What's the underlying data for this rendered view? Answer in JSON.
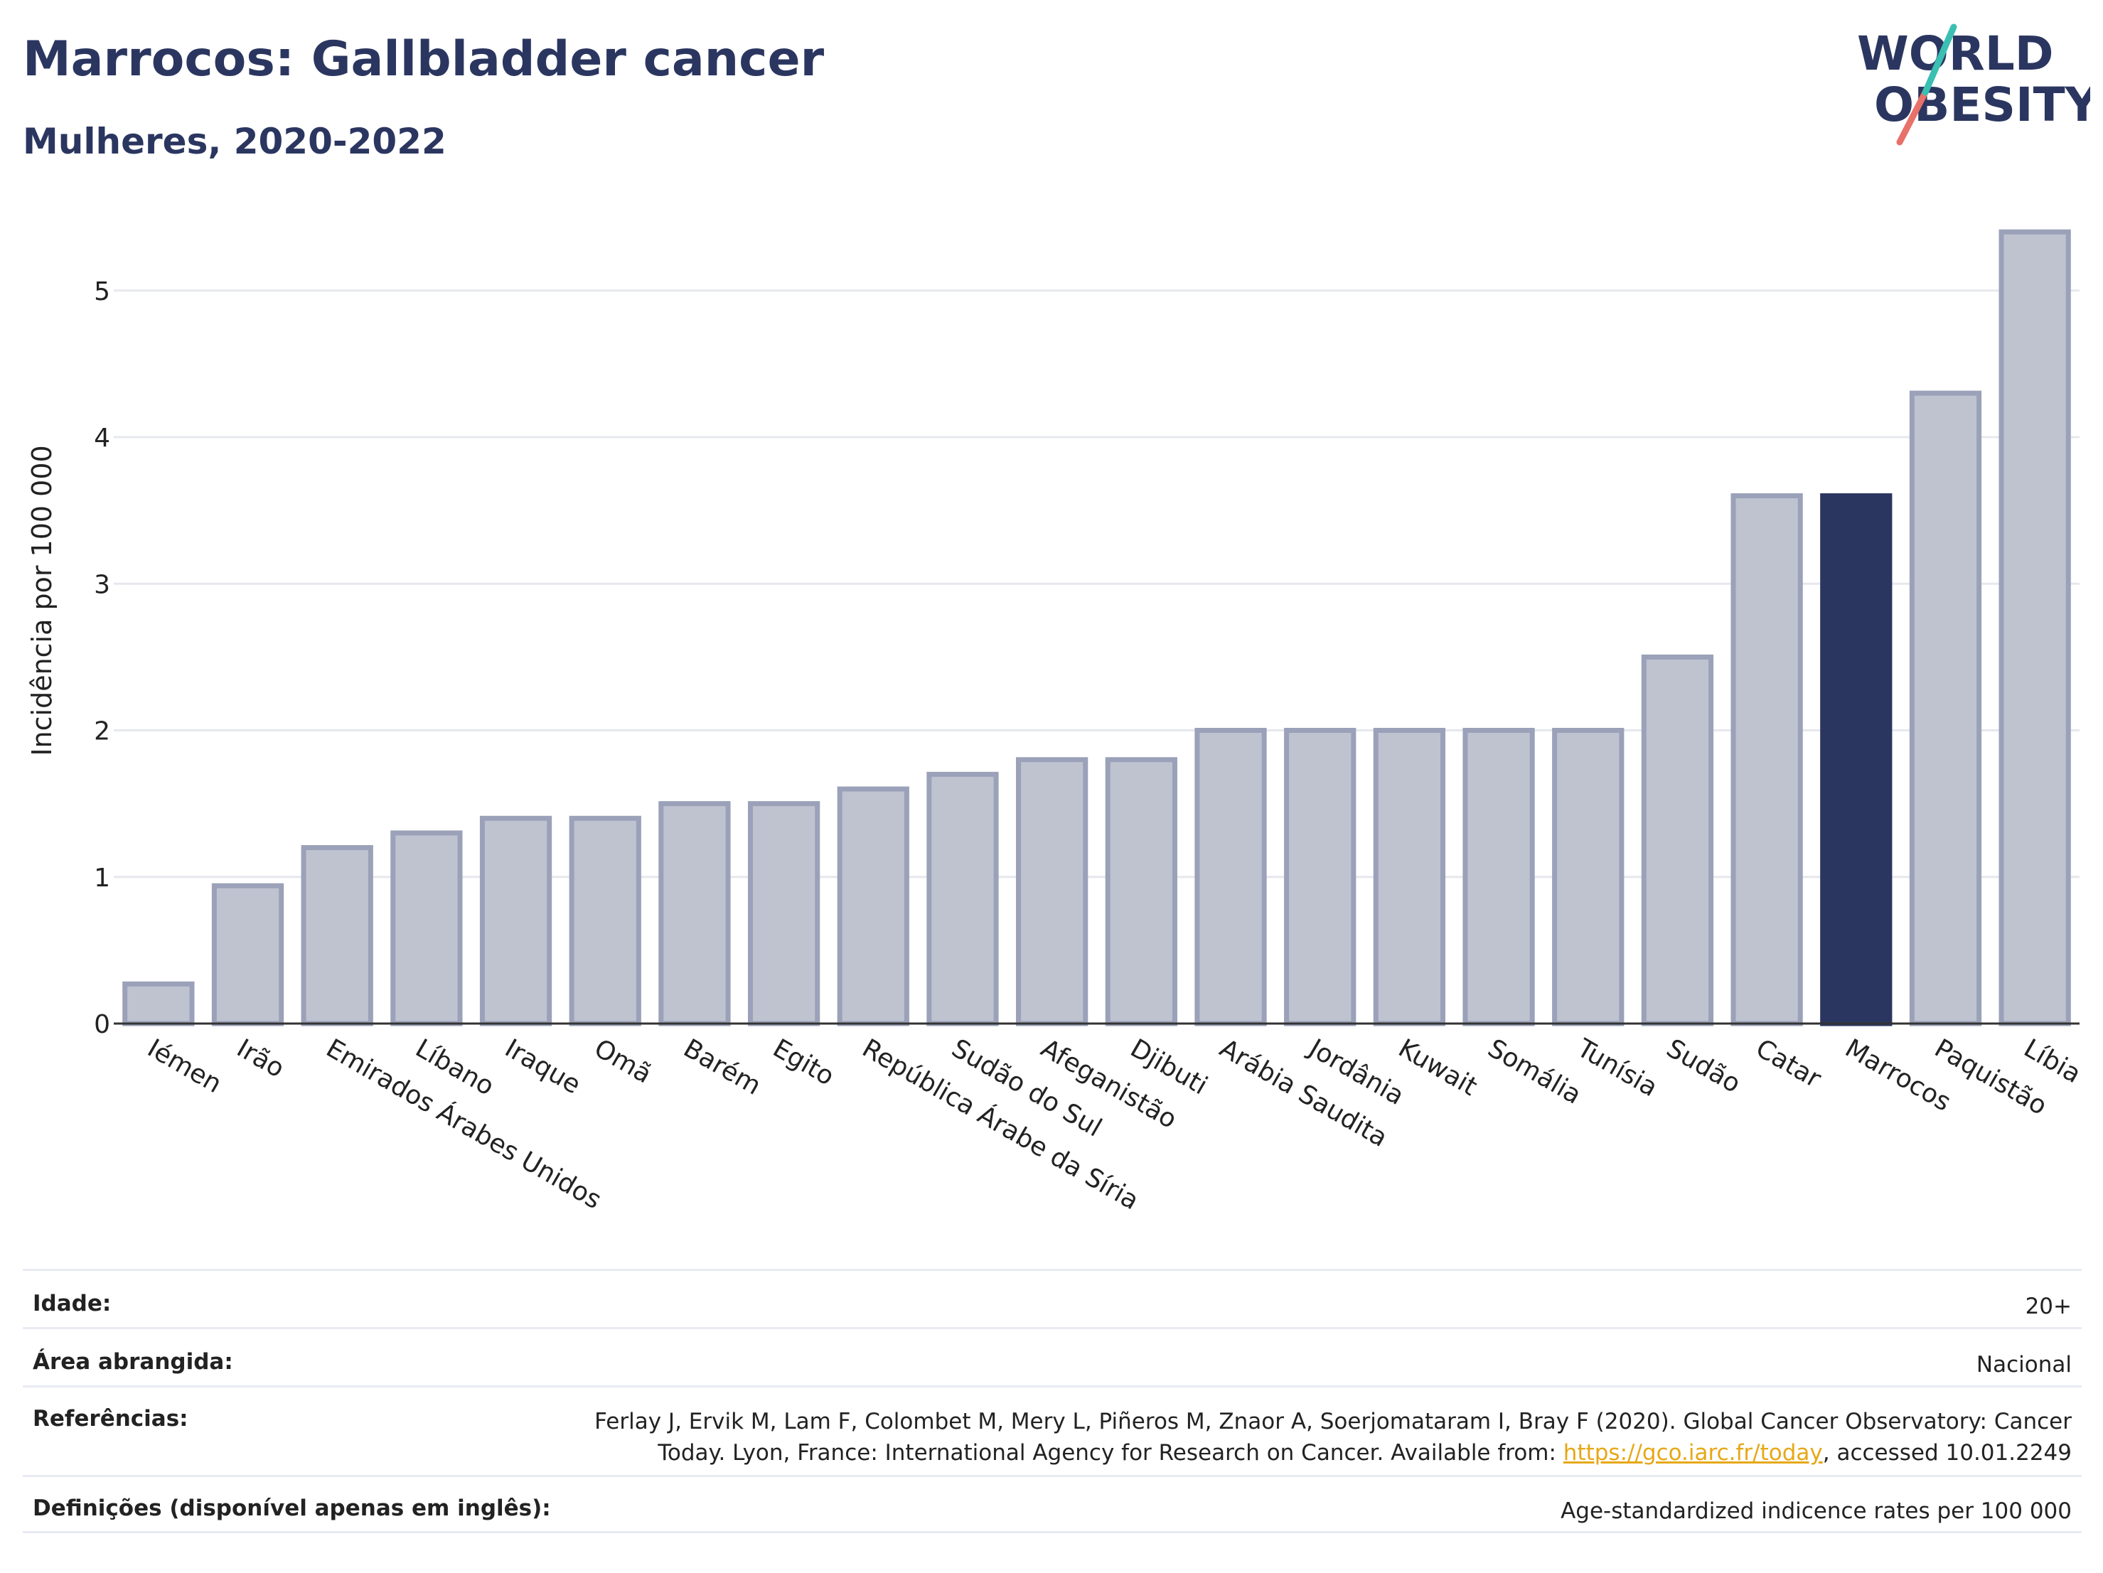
{
  "header": {
    "title": "Marrocos: Gallbladder cancer",
    "subtitle": "Mulheres, 2020-2022"
  },
  "logo": {
    "line1": "WORLD",
    "line2": "OBESITY",
    "accent_top": "#3bbfb2",
    "accent_bottom": "#e8716a",
    "text_color": "#2b3660"
  },
  "chart_data": {
    "type": "bar",
    "ylabel": "Incidência por 100 000",
    "xlabel": "",
    "ylim": [
      0,
      5.6
    ],
    "yticks": [
      0,
      1,
      2,
      3,
      4,
      5
    ],
    "grid": true,
    "categories": [
      "Iémen",
      "Irão",
      "Emirados Árabes Unidos",
      "Líbano",
      "Iraque",
      "Omã",
      "Barém",
      "Egito",
      "República Árabe da Síria",
      "Sudão do Sul",
      "Afeganistão",
      "Djibuti",
      "Arábia Saudita",
      "Jordânia",
      "Kuwait",
      "Somália",
      "Tunísia",
      "Sudão",
      "Catar",
      "Marrocos",
      "Paquistão",
      "Líbia"
    ],
    "values": [
      0.27,
      0.94,
      1.2,
      1.3,
      1.4,
      1.4,
      1.5,
      1.5,
      1.6,
      1.7,
      1.8,
      1.8,
      2.0,
      2.0,
      2.0,
      2.0,
      2.0,
      2.5,
      3.6,
      3.6,
      4.3,
      5.4
    ],
    "highlight": "Marrocos",
    "colors": {
      "bar": "#bfc3d0",
      "bar_edge": "#9aa1b8",
      "highlight": "#2b3660"
    }
  },
  "info": [
    {
      "label": "Idade:",
      "value": "20+"
    },
    {
      "label": "Área abrangida:",
      "value": "Nacional"
    },
    {
      "label": "Referências:",
      "value_pre": "Ferlay J, Ervik M, Lam F, Colombet M, Mery L, Piñeros M, Znaor A, Soerjomataram I, Bray F (2020). Global Cancer Observatory: Cancer Today. Lyon, France: International Agency for Research on Cancer. Available from: ",
      "link": "https://gco.iarc.fr/today",
      "value_post": ", accessed 10.01.2249"
    },
    {
      "label": "Definições (disponível apenas em inglês):",
      "value": "Age-standardized indicence rates per 100 000"
    }
  ]
}
